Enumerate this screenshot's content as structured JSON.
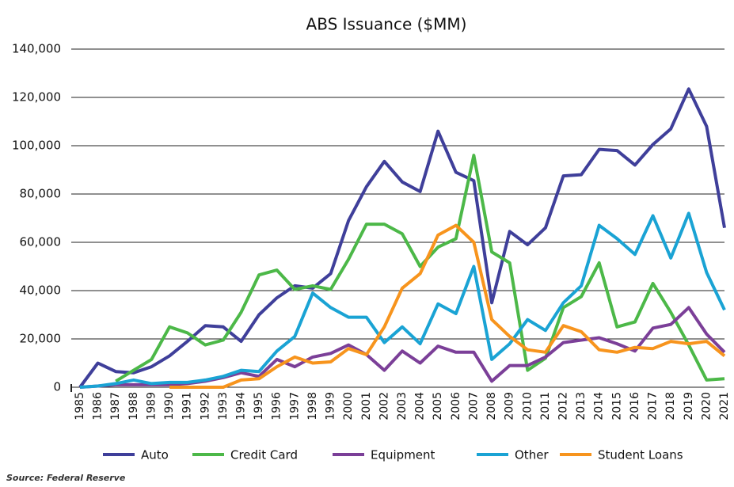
{
  "chart_data": {
    "type": "line",
    "title": "ABS Issuance ($MM)",
    "categories": [
      "1985",
      "1986",
      "1987",
      "1988",
      "1989",
      "1990",
      "1991",
      "1992",
      "1993",
      "1994",
      "1995",
      "1996",
      "1997",
      "1998",
      "1999",
      "2000",
      "2001",
      "2002",
      "2003",
      "2004",
      "2005",
      "2006",
      "2007",
      "2008",
      "2009",
      "2010",
      "2011",
      "2012",
      "2013",
      "2014",
      "2015",
      "2016",
      "2017",
      "2018",
      "2019",
      "2020",
      "2021"
    ],
    "series": [
      {
        "name": "Auto",
        "color": "#3f3f9a",
        "values": [
          0,
          10000,
          6500,
          6000,
          8500,
          13000,
          19000,
          25500,
          25000,
          19000,
          30000,
          37000,
          42000,
          41000,
          47000,
          69000,
          83000,
          93500,
          85000,
          81000,
          106000,
          89000,
          85500,
          35000,
          64500,
          59000,
          66000,
          87500,
          88000,
          98500,
          98000,
          92000,
          100500,
          107000,
          123500,
          108000,
          66000
        ]
      },
      {
        "name": "Credit Card",
        "color": "#4cb848",
        "values": [
          null,
          null,
          2500,
          7000,
          11500,
          25000,
          22500,
          17500,
          19500,
          31000,
          46500,
          48500,
          40500,
          42000,
          40500,
          53000,
          67500,
          67500,
          63500,
          50000,
          58000,
          61500,
          96000,
          56000,
          51500,
          7000,
          12000,
          33000,
          37500,
          51500,
          25000,
          27000,
          43000,
          31000,
          17500,
          3000,
          3500
        ]
      },
      {
        "name": "Equipment",
        "color": "#7b3f98",
        "values": [
          0,
          500,
          1000,
          1000,
          1000,
          1000,
          1500,
          2500,
          4000,
          6000,
          4500,
          11500,
          8500,
          12500,
          14000,
          17500,
          13500,
          7000,
          15000,
          10000,
          17000,
          14500,
          14500,
          2500,
          9000,
          9000,
          12500,
          18500,
          19500,
          20500,
          18000,
          15000,
          24500,
          26000,
          33000,
          22000,
          14500
        ]
      },
      {
        "name": "Other",
        "color": "#1aa3d4",
        "values": [
          0,
          500,
          1500,
          3000,
          1500,
          2000,
          2000,
          3000,
          4500,
          7000,
          6500,
          15000,
          21000,
          39000,
          33000,
          29000,
          29000,
          18500,
          25000,
          18000,
          34500,
          30500,
          50000,
          11500,
          18000,
          28000,
          23500,
          35000,
          42000,
          67000,
          61500,
          55000,
          71000,
          53500,
          72000,
          47500,
          32000
        ]
      },
      {
        "name": "Student Loans",
        "color": "#f7941d",
        "values": [
          null,
          null,
          null,
          null,
          null,
          0,
          0,
          0,
          0,
          3000,
          3500,
          8500,
          12500,
          10000,
          10500,
          16000,
          13500,
          25000,
          41000,
          47000,
          63000,
          67000,
          60000,
          28000,
          21000,
          15500,
          14500,
          25500,
          23000,
          15500,
          14500,
          16500,
          16000,
          19000,
          18000,
          19000,
          13000
        ]
      }
    ],
    "ylim": [
      0,
      140000
    ],
    "yticks": [
      0,
      {
        "value": 20000,
        "label": "20,000"
      },
      {
        "value": 40000,
        "label": "40,000"
      },
      {
        "value": 60000,
        "label": "60,000"
      },
      {
        "value": 80000,
        "label": "80,000"
      },
      {
        "value": 100000,
        "label": "100,000"
      },
      {
        "value": 120000,
        "label": "120,000"
      },
      {
        "value": 140000,
        "label": "140,000"
      }
    ],
    "grid": true,
    "legend": "bottom",
    "source": "Source: Federal Reserve"
  }
}
